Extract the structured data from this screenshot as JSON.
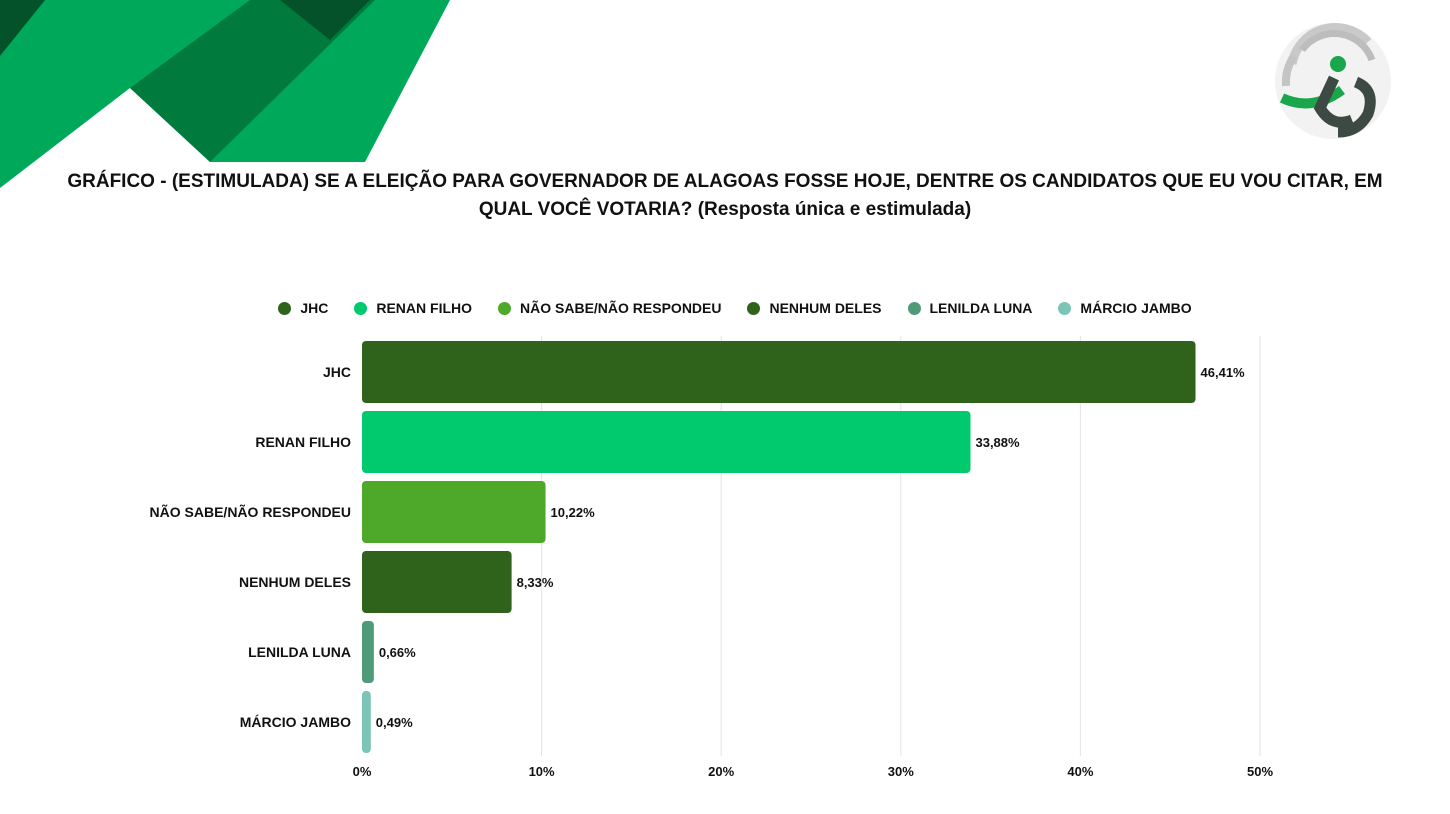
{
  "title_line1": "GRÁFICO  -  (ESTIMULADA) SE A ELEIÇÃO PARA GOVERNADOR DE ALAGOAS FOSSE HOJE, DENTRE OS CANDIDATOS QUE EU VOU CITAR, EM",
  "title_line2": "QUAL VOCÊ VOTARIA? (Resposta única e estimulada)",
  "logo_icon": "brand-logo-icon",
  "chart_data": {
    "type": "bar",
    "orientation": "horizontal",
    "categories": [
      "JHC",
      "RENAN FILHO",
      "NÃO SABE/NÃO RESPONDEU",
      "NENHUM DELES",
      "LENILDA LUNA",
      "MÁRCIO JAMBO"
    ],
    "values": [
      46.41,
      33.88,
      10.22,
      8.33,
      0.66,
      0.49
    ],
    "value_labels": [
      "46,41%",
      "33,88%",
      "10,22%",
      "8,33%",
      "0,66%",
      "0,49%"
    ],
    "colors": [
      "#2f621a",
      "#00c96e",
      "#4ea82a",
      "#2f621a",
      "#4f9a78",
      "#7cc4b6"
    ],
    "xlim": [
      0,
      50
    ],
    "x_ticks": [
      0,
      10,
      20,
      30,
      40,
      50
    ],
    "x_tick_labels": [
      "0%",
      "10%",
      "20%",
      "30%",
      "40%",
      "50%"
    ],
    "grid": true,
    "legend_position": "top-center",
    "legend": [
      {
        "label": "JHC",
        "color": "#2f621a"
      },
      {
        "label": "RENAN FILHO",
        "color": "#00c96e"
      },
      {
        "label": "NÃO SABE/NÃO RESPONDEU",
        "color": "#4ea82a"
      },
      {
        "label": "NENHUM DELES",
        "color": "#2f621a"
      },
      {
        "label": "LENILDA LUNA",
        "color": "#4f9a78"
      },
      {
        "label": "MÁRCIO JAMBO",
        "color": "#7cc4b6"
      }
    ]
  }
}
